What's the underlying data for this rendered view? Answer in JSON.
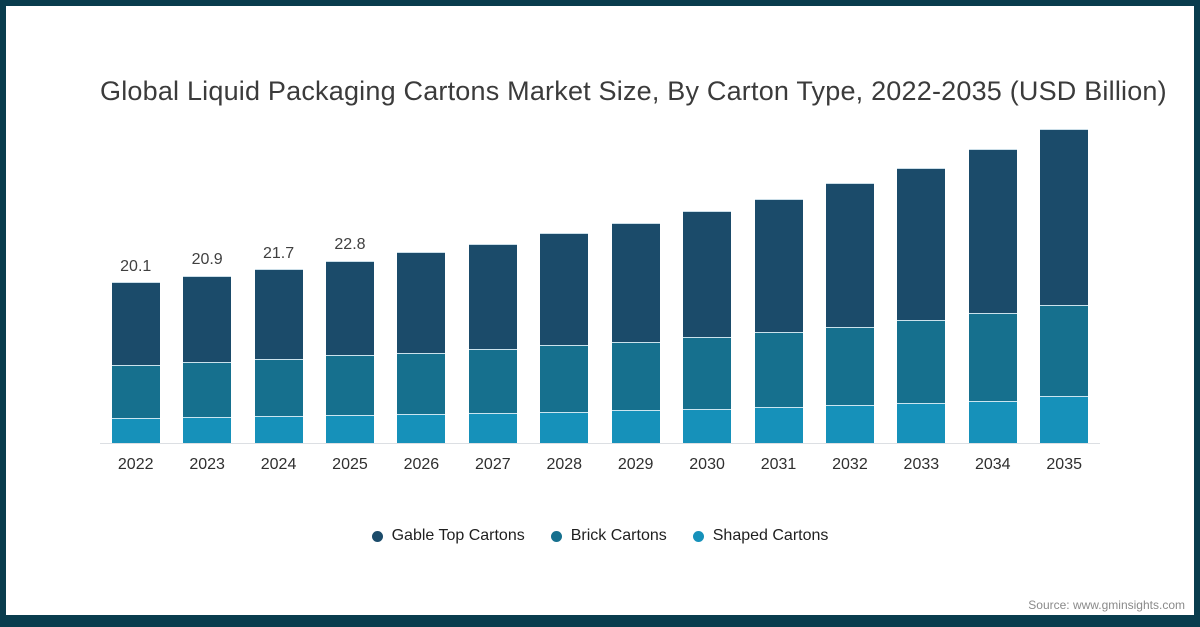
{
  "title": "Global Liquid Packaging Cartons Market Size, By Carton Type, 2022-2035 (USD Billion)",
  "source": "Source: www.gminsights.com",
  "colors": {
    "page_border": "#093c4d",
    "axis_line": "#dcdfe3",
    "title_text": "#3b3b3b",
    "bar_label_text": "#404040",
    "axis_label_text": "#2f2f2f",
    "source_text": "#8a8a8a"
  },
  "chart_data": {
    "type": "bar",
    "stacked": true,
    "title": "Global Liquid Packaging Cartons Market Size, By Carton Type, 2022-2035 (USD Billion)",
    "unit": "USD Billion",
    "categories": [
      "2022",
      "2023",
      "2024",
      "2025",
      "2026",
      "2027",
      "2028",
      "2029",
      "2030",
      "2031",
      "2032",
      "2033",
      "2034",
      "2035"
    ],
    "series": [
      {
        "name": "Gable Top Cartons",
        "color": "#1b4b6a",
        "values": [
          10.3,
          10.8,
          11.2,
          11.8,
          12.6,
          13.2,
          14.0,
          14.9,
          15.7,
          16.6,
          18.0,
          19.0,
          20.5,
          21.9
        ]
      },
      {
        "name": "Brick Cartons",
        "color": "#16708e",
        "values": [
          6.7,
          6.9,
          7.1,
          7.5,
          7.7,
          8.0,
          8.4,
          8.5,
          9.0,
          9.4,
          9.7,
          10.4,
          11.0,
          11.4
        ]
      },
      {
        "name": "Shaped Cartons",
        "color": "#1691ba",
        "values": [
          3.1,
          3.2,
          3.4,
          3.5,
          3.6,
          3.7,
          3.9,
          4.1,
          4.3,
          4.5,
          4.8,
          5.0,
          5.3,
          5.9
        ]
      }
    ],
    "totals": [
      20.1,
      20.9,
      21.7,
      22.8,
      23.9,
      24.9,
      26.3,
      27.5,
      29.0,
      30.5,
      32.5,
      34.4,
      36.8,
      39.2
    ],
    "total_labels_shown": [
      "20.1",
      "20.9",
      "21.7",
      "22.8"
    ],
    "ylim": [
      0,
      42
    ],
    "grid": false,
    "legend_position": "bottom"
  }
}
